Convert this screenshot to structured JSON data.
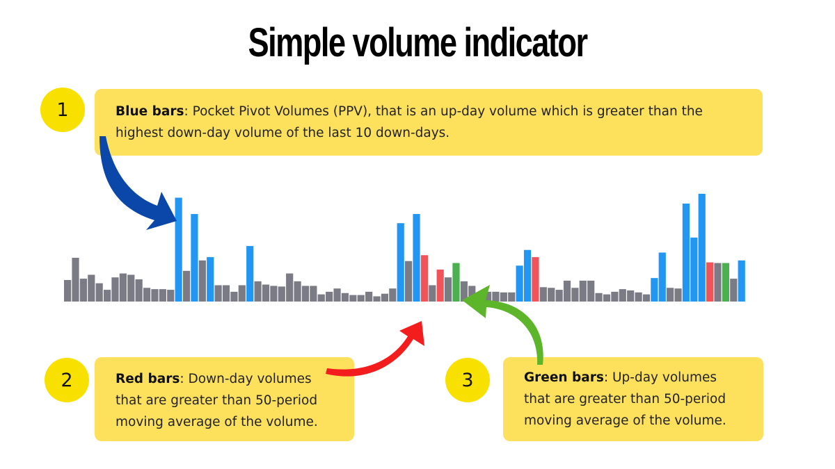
{
  "title": "Simple volume indicator",
  "callouts": [
    {
      "number": "1",
      "heading": "Blue bars",
      "text": ": Pocket Pivot Volumes (PPV), that is an up-day volume which is greater than the highest down-day volume of the last 10 down-days."
    },
    {
      "number": "2",
      "heading": "Red bars",
      "text": ": Down-day volumes that are greater than 50-period moving average of the volume."
    },
    {
      "number": "3",
      "heading": "Green bars",
      "text": ": Up-day volumes that are greater than 50-period moving average of the volume."
    }
  ],
  "colors": {
    "gray": "#7b7b86",
    "blue": "#2196f3",
    "red": "#f0545a",
    "green": "#4caf50",
    "callout_bg": "#fde05c",
    "badge_bg": "#f8e000",
    "arrow_blue": "#0a47a8",
    "arrow_red": "#f41d1d",
    "arrow_green": "#5db52a"
  },
  "chart_data": {
    "type": "bar",
    "ylim": [
      0,
      160
    ],
    "series": [
      {
        "values": [
          {
            "v": 33,
            "c": "gray"
          },
          {
            "v": 67,
            "c": "gray"
          },
          {
            "v": 35,
            "c": "gray"
          },
          {
            "v": 41,
            "c": "gray"
          },
          {
            "v": 28,
            "c": "gray"
          },
          {
            "v": 18,
            "c": "gray"
          },
          {
            "v": 37,
            "c": "gray"
          },
          {
            "v": 43,
            "c": "gray"
          },
          {
            "v": 41,
            "c": "gray"
          },
          {
            "v": 34,
            "c": "gray"
          },
          {
            "v": 21,
            "c": "gray"
          },
          {
            "v": 19,
            "c": "gray"
          },
          {
            "v": 19,
            "c": "gray"
          },
          {
            "v": 18,
            "c": "gray"
          },
          {
            "v": 159,
            "c": "blue"
          },
          {
            "v": 47,
            "c": "gray"
          },
          {
            "v": 134,
            "c": "blue"
          },
          {
            "v": 63,
            "c": "gray"
          },
          {
            "v": 68,
            "c": "blue"
          },
          {
            "v": 25,
            "c": "gray"
          },
          {
            "v": 25,
            "c": "gray"
          },
          {
            "v": 15,
            "c": "gray"
          },
          {
            "v": 25,
            "c": "gray"
          },
          {
            "v": 85,
            "c": "blue"
          },
          {
            "v": 31,
            "c": "gray"
          },
          {
            "v": 26,
            "c": "gray"
          },
          {
            "v": 24,
            "c": "gray"
          },
          {
            "v": 23,
            "c": "gray"
          },
          {
            "v": 43,
            "c": "gray"
          },
          {
            "v": 31,
            "c": "gray"
          },
          {
            "v": 24,
            "c": "gray"
          },
          {
            "v": 24,
            "c": "gray"
          },
          {
            "v": 11,
            "c": "gray"
          },
          {
            "v": 15,
            "c": "gray"
          },
          {
            "v": 20,
            "c": "gray"
          },
          {
            "v": 13,
            "c": "gray"
          },
          {
            "v": 10,
            "c": "gray"
          },
          {
            "v": 10,
            "c": "gray"
          },
          {
            "v": 15,
            "c": "gray"
          },
          {
            "v": 8,
            "c": "gray"
          },
          {
            "v": 12,
            "c": "gray"
          },
          {
            "v": 20,
            "c": "gray"
          },
          {
            "v": 120,
            "c": "blue"
          },
          {
            "v": 62,
            "c": "gray"
          },
          {
            "v": 134,
            "c": "blue"
          },
          {
            "v": 71,
            "c": "red"
          },
          {
            "v": 25,
            "c": "gray"
          },
          {
            "v": 49,
            "c": "red"
          },
          {
            "v": 37,
            "c": "gray"
          },
          {
            "v": 59,
            "c": "green"
          },
          {
            "v": 31,
            "c": "gray"
          },
          {
            "v": 24,
            "c": "gray"
          },
          {
            "v": 14,
            "c": "gray"
          },
          {
            "v": 15,
            "c": "gray"
          },
          {
            "v": 15,
            "c": "gray"
          },
          {
            "v": 14,
            "c": "gray"
          },
          {
            "v": 14,
            "c": "gray"
          },
          {
            "v": 55,
            "c": "blue"
          },
          {
            "v": 79,
            "c": "blue"
          },
          {
            "v": 68,
            "c": "red"
          },
          {
            "v": 22,
            "c": "gray"
          },
          {
            "v": 21,
            "c": "gray"
          },
          {
            "v": 18,
            "c": "gray"
          },
          {
            "v": 32,
            "c": "gray"
          },
          {
            "v": 21,
            "c": "gray"
          },
          {
            "v": 32,
            "c": "gray"
          },
          {
            "v": 32,
            "c": "gray"
          },
          {
            "v": 13,
            "c": "gray"
          },
          {
            "v": 11,
            "c": "gray"
          },
          {
            "v": 15,
            "c": "gray"
          },
          {
            "v": 19,
            "c": "gray"
          },
          {
            "v": 17,
            "c": "gray"
          },
          {
            "v": 14,
            "c": "gray"
          },
          {
            "v": 11,
            "c": "gray"
          },
          {
            "v": 36,
            "c": "blue"
          },
          {
            "v": 75,
            "c": "blue"
          },
          {
            "v": 21,
            "c": "gray"
          },
          {
            "v": 20,
            "c": "gray"
          },
          {
            "v": 150,
            "c": "blue"
          },
          {
            "v": 98,
            "c": "blue"
          },
          {
            "v": 165,
            "c": "blue"
          },
          {
            "v": 60,
            "c": "red"
          },
          {
            "v": 59,
            "c": "gray"
          },
          {
            "v": 59,
            "c": "green"
          },
          {
            "v": 35,
            "c": "gray"
          },
          {
            "v": 63,
            "c": "blue"
          }
        ]
      }
    ]
  }
}
